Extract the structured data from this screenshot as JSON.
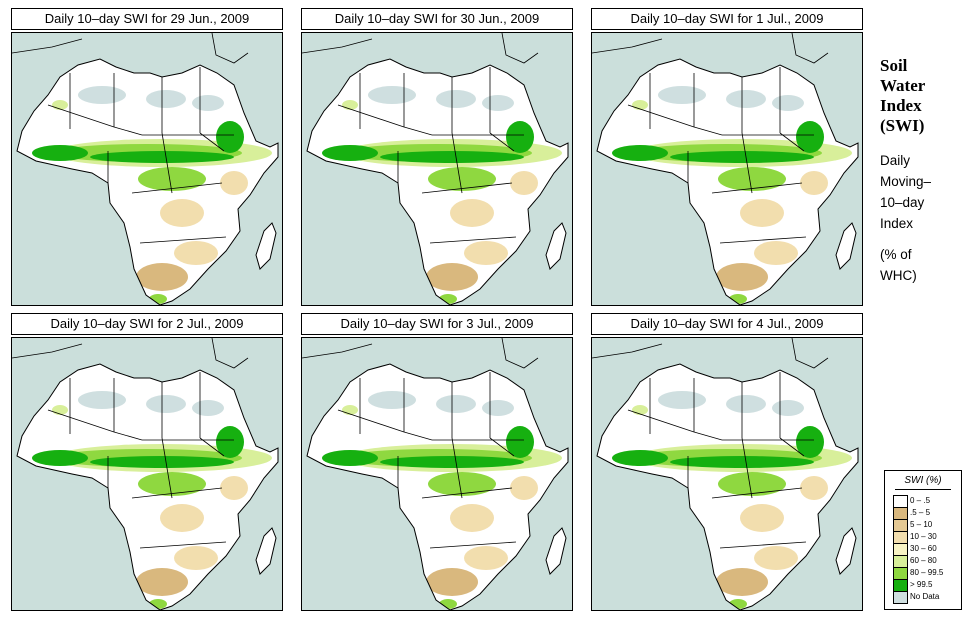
{
  "panels": [
    {
      "title": "Daily 10–day SWI for  29 Jun., 2009"
    },
    {
      "title": "Daily 10–day SWI for  30 Jun., 2009"
    },
    {
      "title": "Daily 10–day SWI for  1 Jul., 2009"
    },
    {
      "title": "Daily 10–day SWI for  2 Jul., 2009"
    },
    {
      "title": "Daily 10–day SWI for  3 Jul., 2009"
    },
    {
      "title": "Daily 10–day SWI for  4 Jul., 2009"
    }
  ],
  "side": {
    "title_lines": [
      "Soil",
      "Water",
      "Index",
      "(SWI)"
    ],
    "subtitle_lines": [
      "Daily",
      "Moving–",
      "10–day",
      "Index"
    ],
    "unit_lines": [
      "(% of",
      "WHC)"
    ]
  },
  "legend": {
    "title": "SWI (%)",
    "items": [
      {
        "label": "0 – .5",
        "color": "#ffffff"
      },
      {
        "label": ".5 – 5",
        "color": "#d9b87e"
      },
      {
        "label": "5 – 10",
        "color": "#e5c994"
      },
      {
        "label": "10 – 30",
        "color": "#f2deae"
      },
      {
        "label": "30 – 60",
        "color": "#f8f3c4"
      },
      {
        "label": "60 – 80",
        "color": "#d8ef9a"
      },
      {
        "label": "80 – 99.5",
        "color": "#8fd840"
      },
      {
        "label": "> 99.5",
        "color": "#16b010"
      },
      {
        "label": "No Data",
        "color": "#cfdfe0"
      }
    ]
  },
  "colors": {
    "ocean": "#cbdfdb",
    "land": "#ffffff",
    "border": "#000000"
  }
}
